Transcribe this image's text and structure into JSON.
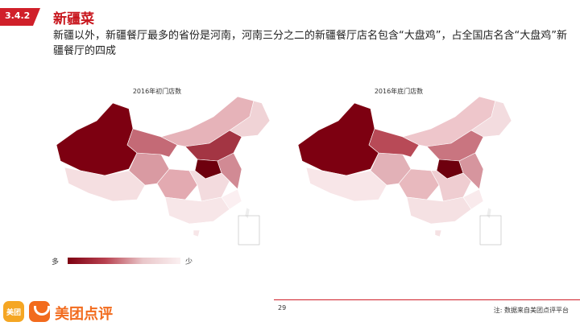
{
  "header": {
    "section_number": "3.4.2",
    "title": "新疆菜",
    "subtitle": "新疆以外，新疆餐厅最多的省份是河南，河南三分之二的新疆餐厅店名包含“大盘鸡”，占全国店名含“大盘鸡”新疆餐厅的四成"
  },
  "maps": {
    "left_caption": "2016年初门店数",
    "right_caption": "2016年底门店数"
  },
  "legend": {
    "high_label": "多",
    "low_label": "少"
  },
  "footer": {
    "page_number": "29",
    "note": "注: 数据来自美团点评平台",
    "brand_icon_text": "美团",
    "brand_name": "美团点评"
  },
  "colors": {
    "accent": "#d0202a",
    "map_dark": "#7d0011",
    "brand_orange": "#f26b1d"
  }
}
